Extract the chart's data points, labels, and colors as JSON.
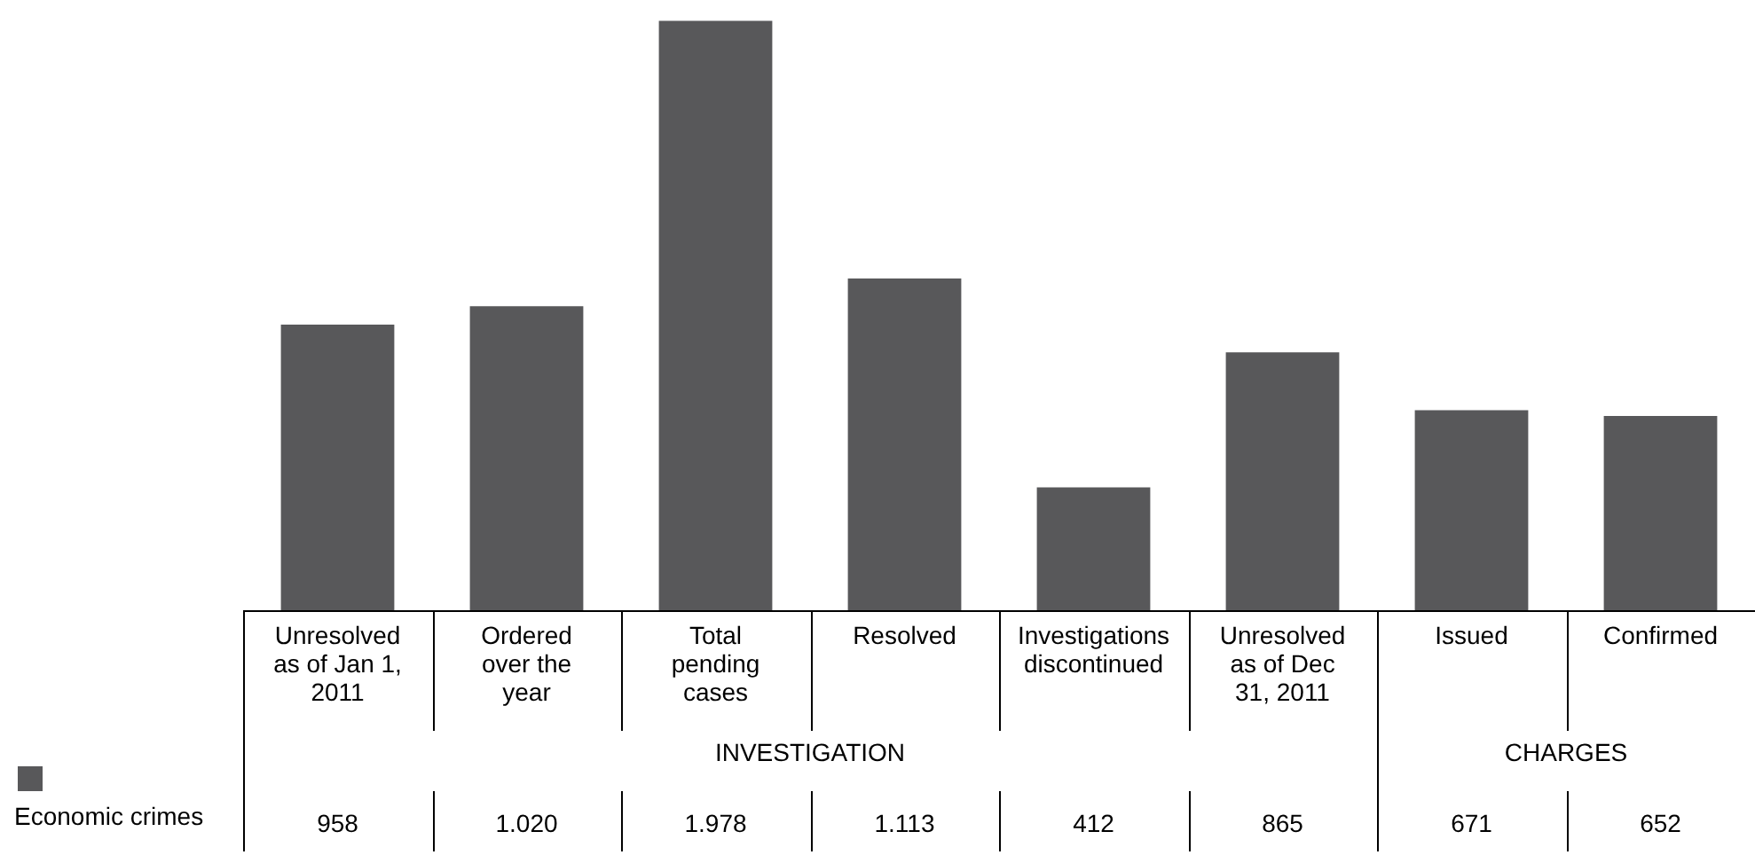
{
  "chart_data": {
    "type": "bar",
    "categories": [
      "Unresolved as of Jan 1, 2011",
      "Ordered over the year",
      "Total pending cases",
      "Resolved",
      "Investigations discontinued",
      "Unresolved as of Dec 31, 2011",
      "Issued",
      "Confirmed"
    ],
    "series": [
      {
        "name": "Economic crimes",
        "color": "#58585a",
        "values": [
          958,
          1020,
          1978,
          1113,
          412,
          865,
          671,
          652
        ],
        "value_labels": [
          "958",
          "1.020",
          "1.978",
          "1.113",
          "412",
          "865",
          "671",
          "652"
        ]
      }
    ],
    "annotations": [
      "INVESTIGATION",
      "CHARGES"
    ],
    "ylim": [
      0,
      2000
    ],
    "legend": "bottom left"
  }
}
